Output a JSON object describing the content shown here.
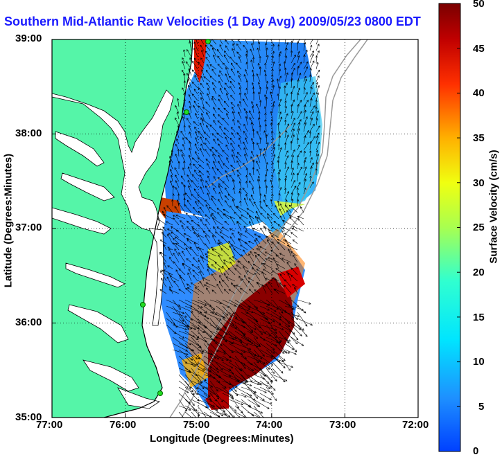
{
  "title": "Southern Mid-Atlantic Raw Velocities (1 Day Avg) 2009/05/23 0800 EDT",
  "map": {
    "x_axis_label": "Longitude (Degrees:Minutes)",
    "y_axis_label": "Latitude (Degrees:Minutes)",
    "x_ticks": [
      "77:00",
      "76:00",
      "75:00",
      "74:00",
      "73:00",
      "72:00"
    ],
    "y_ticks": [
      "39:00",
      "38:00",
      "37:00",
      "36:00",
      "35:00"
    ],
    "lon_range": [
      -77,
      -72
    ],
    "lat_range": [
      35,
      39
    ],
    "grid": "dotted",
    "land_color": "#55f5a8",
    "coast_color": "#000000"
  },
  "colorbar": {
    "label": "Surface Velocity (cm/s)",
    "ticks": [
      "50",
      "45",
      "40",
      "35",
      "30",
      "25",
      "20",
      "15",
      "10",
      "5",
      "0"
    ],
    "range": [
      0,
      50
    ],
    "colormap": "jet"
  },
  "stations_icon": "green-dot"
}
